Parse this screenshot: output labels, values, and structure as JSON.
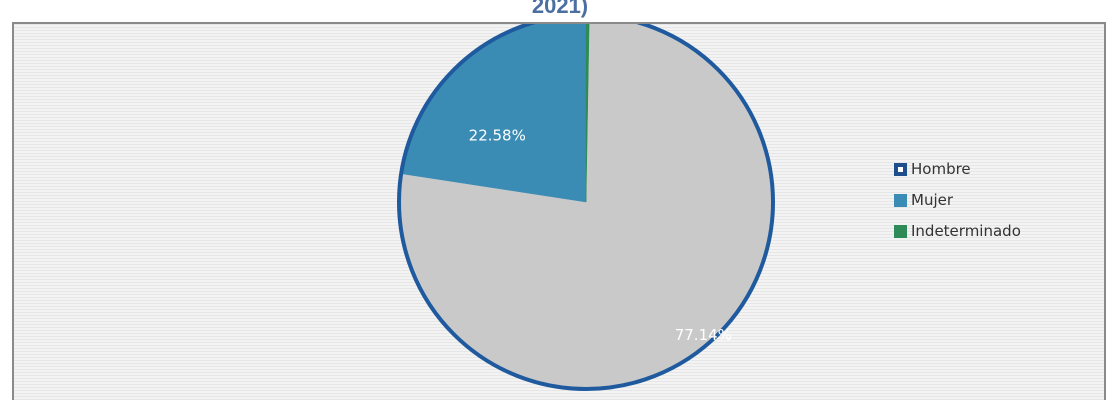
{
  "title_fragment": "2021)",
  "chart_data": {
    "type": "pie",
    "title": "",
    "categories": [
      "Hombre",
      "Mujer",
      "Indeterminado"
    ],
    "values": [
      77.14,
      22.58,
      0.28
    ],
    "slice_labels": [
      "77.14%",
      "22.58%",
      ""
    ],
    "colors": [
      "#c9c9c9",
      "#3a8cb5",
      "#2e8b57"
    ],
    "legend_swatch_colors": [
      "#1f4e8c",
      "#3a8cb5",
      "#2e8b57"
    ],
    "outline_color": "#1f5a9e",
    "legend_position": "right"
  }
}
